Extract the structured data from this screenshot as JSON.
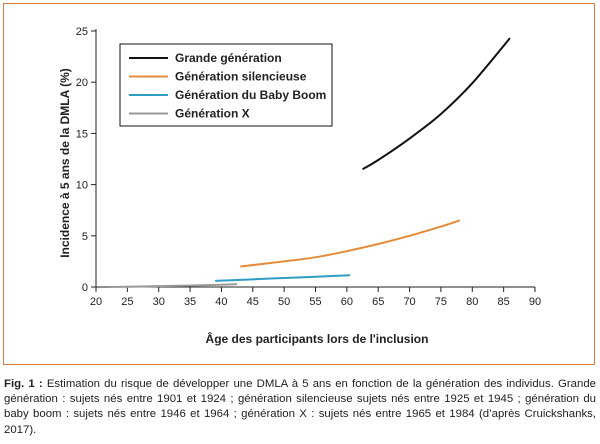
{
  "chart_data": {
    "type": "line",
    "title": "",
    "xlabel": "Âge des participants lors de l'inclusion",
    "ylabel": "Incidence à 5 ans de la DMLA (%)",
    "xlim": [
      20,
      90
    ],
    "ylim": [
      0,
      25
    ],
    "xticks": [
      20,
      25,
      30,
      35,
      40,
      45,
      50,
      55,
      60,
      65,
      70,
      75,
      80,
      85,
      90
    ],
    "yticks": [
      0,
      5,
      10,
      15,
      20,
      25
    ],
    "grid": false,
    "legend_position": "top-left",
    "series": [
      {
        "name": "Grande génération",
        "color": "#111111",
        "x": [
          62.5,
          65,
          70,
          75,
          80,
          86
        ],
        "y": [
          11.5,
          12.4,
          14.5,
          16.9,
          19.9,
          24.3
        ]
      },
      {
        "name": "Génération silencieuse",
        "color": "#e58c3a",
        "x": [
          43,
          50,
          55,
          60,
          65,
          70,
          75,
          78
        ],
        "y": [
          2.0,
          2.5,
          2.9,
          3.5,
          4.2,
          5.0,
          5.9,
          6.5
        ]
      },
      {
        "name": "Génération du Baby Boom",
        "color": "#2f9ec4",
        "x": [
          39,
          45,
          50,
          55,
          60.5
        ],
        "y": [
          0.6,
          0.75,
          0.88,
          1.0,
          1.15
        ]
      },
      {
        "name": "Génération X",
        "color": "#999a94",
        "x": [
          22,
          30,
          35,
          40,
          42.5
        ],
        "y": [
          0.0,
          0.08,
          0.15,
          0.22,
          0.28
        ]
      }
    ]
  },
  "caption": {
    "label": "Fig. 1 :",
    "text": "Estimation du risque de développer une DMLA à 5 ans en fonction de la génération des individus. Grande génération : sujets nés entre 1901 et 1924 ; génération silencieuse sujets nés entre 1925 et 1945 ; génération du baby boom : sujets nés entre 1946 et 1964 ; génération X : sujets nés entre 1965 et 1984 (d’après Cruickshanks, 2017)."
  },
  "colors": {
    "frame": "#d87a3c",
    "axis": "#222222"
  }
}
